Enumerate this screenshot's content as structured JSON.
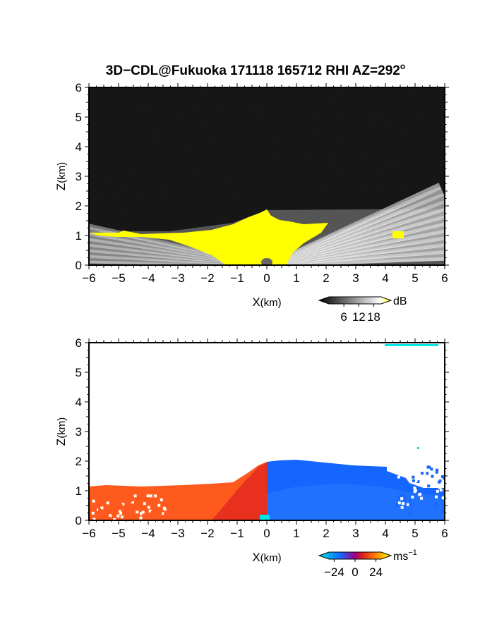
{
  "title": "3D−CDL@Fukuoka 171118 165712 RHI AZ=292",
  "title_sup": "o",
  "chart_data": [
    {
      "type": "heatmap",
      "name": "reflectivity-panel",
      "xlabel_main": "X",
      "xlabel_unit": "(km)",
      "ylabel_main": "Z",
      "ylabel_unit": "(km)",
      "xlim": [
        -6,
        6
      ],
      "ylim": [
        0,
        6
      ],
      "x_ticks": [
        "−6",
        "−5",
        "−4",
        "−3",
        "−2",
        "−1",
        "0",
        "1",
        "2",
        "3",
        "4",
        "5",
        "6"
      ],
      "y_ticks": [
        "0",
        "1",
        "2",
        "3",
        "4",
        "5",
        "6"
      ],
      "colorbar": {
        "unit": "dB",
        "ticks": [
          "6",
          "12",
          "18"
        ],
        "range": [
          0,
          21
        ],
        "over_color": "#ffff00"
      },
      "colors": {
        "background": "#1e1e1e",
        "strong_echo": "#ffff00",
        "beam": "#e8e8e8"
      }
    },
    {
      "type": "heatmap",
      "name": "doppler-velocity-panel",
      "xlabel_main": "X",
      "xlabel_unit": "(km)",
      "ylabel_main": "Z",
      "ylabel_unit": "(km)",
      "xlim": [
        -6,
        6
      ],
      "ylim": [
        0,
        6
      ],
      "x_ticks": [
        "−6",
        "−5",
        "−4",
        "−3",
        "−2",
        "−1",
        "0",
        "1",
        "2",
        "3",
        "4",
        "5",
        "6"
      ],
      "y_ticks": [
        "0",
        "1",
        "2",
        "3",
        "4",
        "5",
        "6"
      ],
      "colorbar": {
        "unit_main": "ms",
        "unit_sup": "−1",
        "ticks": [
          "−24",
          "0",
          "24"
        ],
        "range": [
          -30,
          30
        ]
      },
      "colors": {
        "negative": "#1565ff",
        "positive": "#ff5a1e",
        "near_zero": "#00e5e5"
      }
    }
  ]
}
